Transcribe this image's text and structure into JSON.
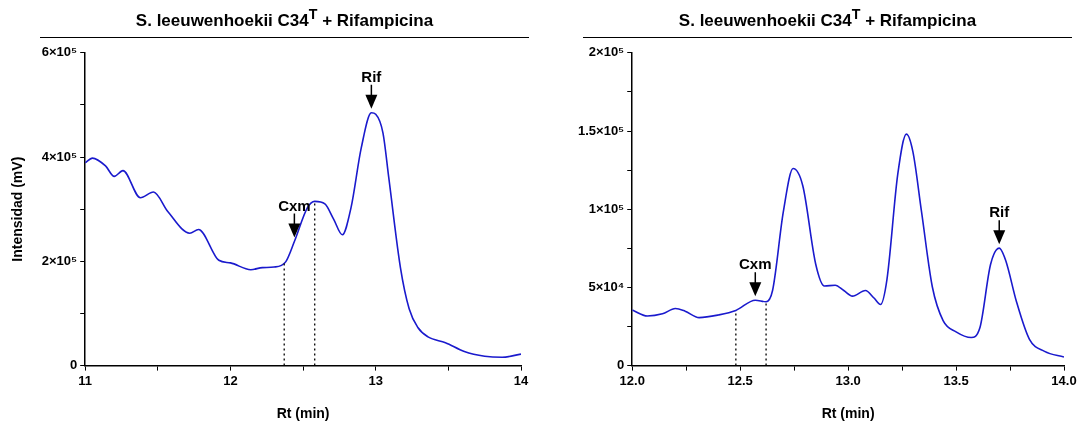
{
  "chart_data": [
    {
      "type": "line",
      "title": "S. leeuwenhoekii C34$^{T}$ + Rifampicina",
      "xlabel": "Rt (min)",
      "ylabel": "Intensidad (mV)",
      "color": "#1a1acd",
      "marker": "none",
      "grid": false,
      "x": [
        11,
        11.05,
        11.14,
        11.2,
        11.26,
        11.38,
        11.47,
        11.57,
        11.72,
        11.78,
        11.92,
        12.0,
        12.14,
        12.22,
        12.3,
        12.38,
        12.44,
        12.53,
        12.58,
        12.65,
        12.71,
        12.77,
        12.83,
        12.9,
        12.97,
        13.0,
        13.05,
        13.09,
        13.17,
        13.23,
        13.29,
        13.36,
        13.48,
        13.61,
        13.75,
        13.87,
        14
      ],
      "values": [
        389000,
        398000,
        383000,
        363000,
        374000,
        322000,
        333000,
        295000,
        254000,
        261000,
        202000,
        197000,
        184000,
        188000,
        189000,
        199000,
        238000,
        303000,
        315000,
        310000,
        281000,
        251000,
        303000,
        417000,
        485000,
        482000,
        446000,
        360000,
        188000,
        109000,
        73000,
        55000,
        44000,
        27000,
        18000,
        16000,
        22000
      ],
      "xlim": [
        11,
        14
      ],
      "xticks": [
        11,
        {
          "value": 11.5,
          "label": null
        },
        12,
        {
          "value": 12.5,
          "label": null
        },
        13,
        {
          "value": 13.5,
          "label": null
        },
        14
      ],
      "ylim": [
        0,
        600000
      ],
      "yticks": [
        0,
        {
          "value": 100000,
          "label": null
        },
        {
          "value": 200000,
          "label": "2×10⁵"
        },
        {
          "value": 300000,
          "label": null
        },
        {
          "value": 400000,
          "label": "4×10⁵"
        },
        {
          "value": 500000,
          "label": null
        },
        {
          "value": 600000,
          "label": "6×10⁵"
        }
      ],
      "ref_lines": [
        {
          "axis": "x",
          "value": 12.37,
          "line_style": "dotted"
        },
        {
          "axis": "x",
          "value": 12.58,
          "line_style": "dotted"
        }
      ],
      "annotations": [
        {
          "text": "Cxm",
          "x": 12.44,
          "y": 238000
        },
        {
          "text": "Rif",
          "x": 12.97,
          "y": 485000
        }
      ]
    },
    {
      "type": "line",
      "title": "S. leeuwenhoekii C34$^{T}$ + Rifampicina",
      "xlabel": "Rt (min)",
      "color": "#1a1acd",
      "marker": "none",
      "grid": false,
      "x": [
        12.0,
        12.07,
        12.14,
        12.2,
        12.245,
        12.31,
        12.4,
        12.48,
        12.57,
        12.62,
        12.65,
        12.7,
        12.745,
        12.79,
        12.85,
        12.89,
        12.94,
        12.98,
        13.02,
        13.08,
        13.12,
        13.15,
        13.18,
        13.23,
        13.27,
        13.3,
        13.34,
        13.39,
        13.44,
        13.5,
        13.57,
        13.61,
        13.66,
        13.7,
        13.73,
        13.78,
        13.84,
        13.91,
        14.0
      ],
      "values": [
        35500,
        31700,
        33100,
        36500,
        34800,
        30700,
        32400,
        35300,
        41800,
        40800,
        48000,
        98400,
        126000,
        115000,
        64800,
        50900,
        51400,
        48000,
        44400,
        48000,
        43200,
        39100,
        55200,
        122400,
        148000,
        136800,
        98400,
        50400,
        28800,
        21600,
        18000,
        24000,
        64800,
        75100,
        67200,
        40800,
        16800,
        9100,
        5500
      ],
      "xlim": [
        12,
        14
      ],
      "xticks": [
        {
          "value": 12,
          "label": "12.0"
        },
        {
          "value": 12.25,
          "label": null
        },
        {
          "value": 12.5,
          "label": "12.5"
        },
        {
          "value": 12.75,
          "label": null
        },
        {
          "value": 13,
          "label": "13.0"
        },
        {
          "value": 13.25,
          "label": null
        },
        {
          "value": 13.5,
          "label": "13.5"
        },
        {
          "value": 13.75,
          "label": null
        },
        {
          "value": 14,
          "label": "14.0"
        }
      ],
      "ylim": [
        0,
        200000
      ],
      "yticks": [
        0,
        {
          "value": 25000,
          "label": null
        },
        {
          "value": 50000,
          "label": "5×10⁴"
        },
        {
          "value": 75000,
          "label": null
        },
        {
          "value": 100000,
          "label": "1×10⁵"
        },
        {
          "value": 125000,
          "label": null
        },
        {
          "value": 150000,
          "label": "1.5×10⁵"
        },
        {
          "value": 175000,
          "label": null
        },
        {
          "value": 200000,
          "label": "2×10⁵"
        }
      ],
      "ref_lines": [
        {
          "axis": "x",
          "value": 12.48,
          "line_style": "dotted"
        },
        {
          "axis": "x",
          "value": 12.62,
          "line_style": "dotted"
        }
      ],
      "annotations": [
        {
          "text": "Cxm",
          "x": 12.57,
          "y": 41800
        },
        {
          "text": "Rif",
          "x": 13.7,
          "y": 75100
        }
      ]
    }
  ]
}
